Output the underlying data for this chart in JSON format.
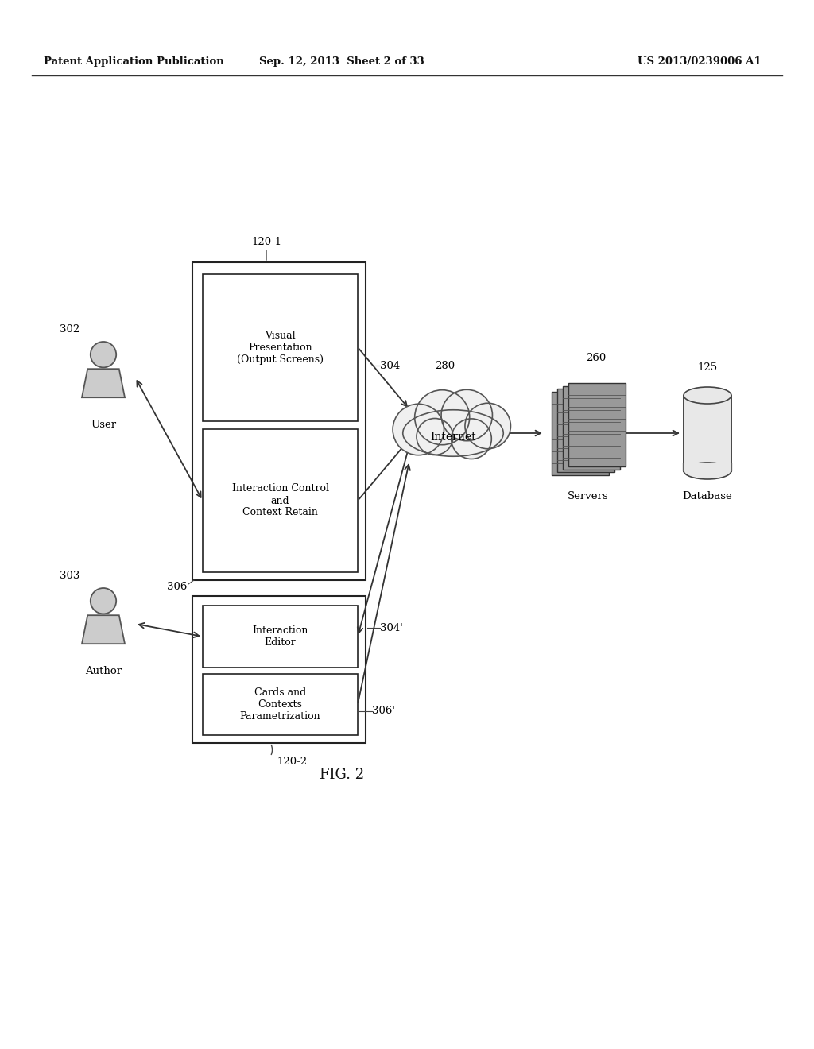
{
  "bg_color": "#ffffff",
  "header_left": "Patent Application Publication",
  "header_mid": "Sep. 12, 2013  Sheet 2 of 33",
  "header_right": "US 2013/0239006 A1",
  "fig_label": "FIG. 2",
  "label_120_1": "120-1",
  "label_120_2": "120-2",
  "label_280": "280",
  "label_260": "260",
  "label_125": "125",
  "label_302": "302",
  "label_303": "303",
  "label_304": "304",
  "label_304p": "304'",
  "label_306": "306",
  "label_306p": "306'",
  "text_vp": "Visual\nPresentation\n(Output Screens)",
  "text_ic": "Interaction Control\nand\nContext Retain",
  "text_ie": "Interaction\nEditor",
  "text_cc": "Cards and\nContexts\nParametrization",
  "text_internet": "Internet",
  "text_servers": "Servers",
  "text_database": "Database",
  "text_user": "User",
  "text_author": "Author"
}
